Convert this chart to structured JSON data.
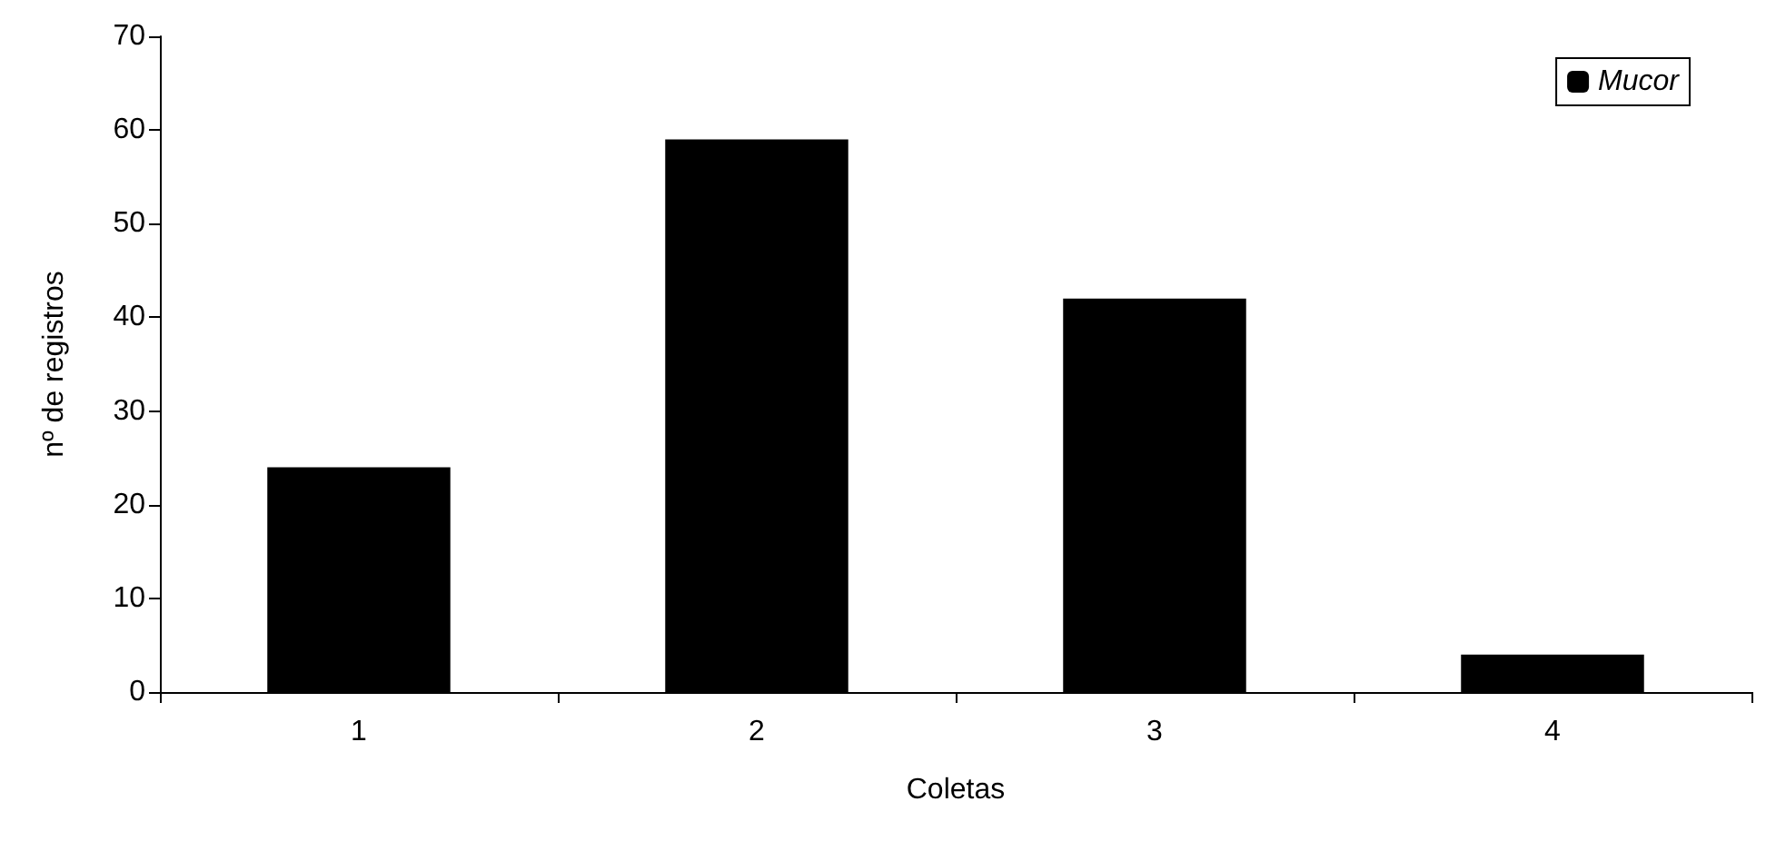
{
  "chart_data": {
    "type": "bar",
    "xlabel": "Coletas",
    "ylabel": "nº de registros",
    "categories": [
      "1",
      "2",
      "3",
      "4"
    ],
    "series": [
      {
        "name": "Mucor",
        "color": "#000000",
        "values": [
          24,
          59,
          42,
          4
        ]
      }
    ],
    "ylim": [
      0,
      70
    ],
    "yticks": [
      0,
      10,
      20,
      30,
      40,
      50,
      60,
      70
    ],
    "grid": false,
    "legend": "top right"
  }
}
